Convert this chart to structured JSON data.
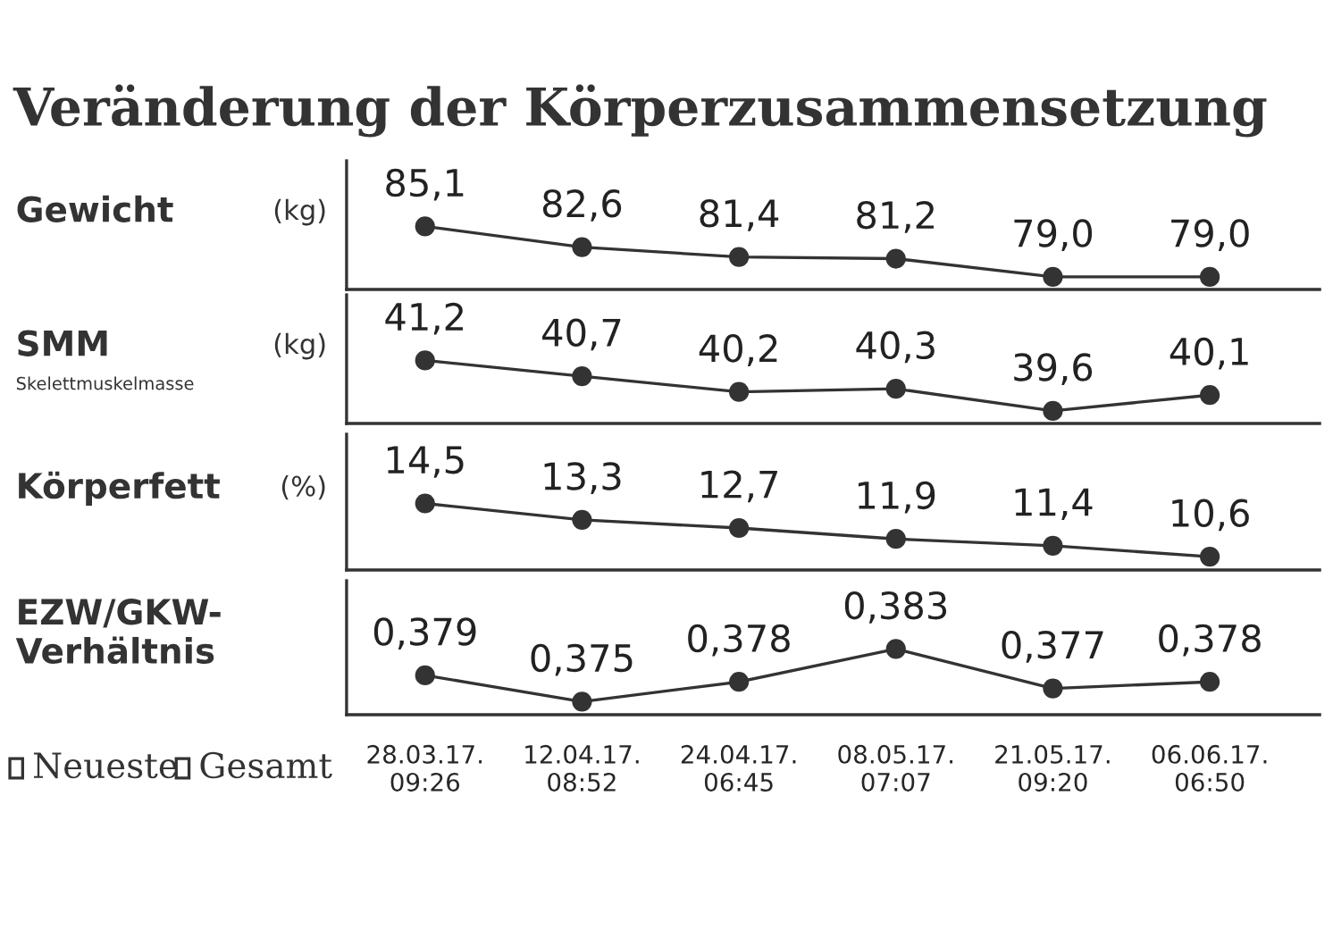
{
  "chart_data": [
    {
      "type": "line",
      "title": "Veränderung der Körperzusammensetzung",
      "ylabel": "Gewicht",
      "annotations": [
        "(kg)"
      ],
      "values": [
        85.1,
        82.6,
        81.4,
        81.2,
        79.0,
        79.0
      ],
      "value_labels": [
        "85,1",
        "82,6",
        "81,4",
        "81,2",
        "79,0",
        "79,0"
      ],
      "color": "#333333",
      "marker": "circle",
      "tick_labels": false
    },
    {
      "type": "line",
      "ylabel": "SMM",
      "annotations": [
        "(kg)",
        "Skelettmuskelmasse"
      ],
      "values": [
        41.2,
        40.7,
        40.2,
        40.3,
        39.6,
        40.1
      ],
      "value_labels": [
        "41,2",
        "40,7",
        "40,2",
        "40,3",
        "39,6",
        "40,1"
      ],
      "color": "#333333",
      "marker": "circle",
      "tick_labels": false
    },
    {
      "type": "line",
      "ylabel": "Körperfett",
      "annotations": [
        "(%)"
      ],
      "values": [
        14.5,
        13.3,
        12.7,
        11.9,
        11.4,
        10.6
      ],
      "value_labels": [
        "14,5",
        "13,3",
        "12,7",
        "11,9",
        "11,4",
        "10,6"
      ],
      "color": "#333333",
      "marker": "circle",
      "tick_labels": false
    },
    {
      "type": "line",
      "ylabel": "EZW/GKW-\nVerhältnis",
      "categories": [
        "28.03.17.\n09:26",
        "12.04.17.\n08:52",
        "24.04.17.\n06:45",
        "08.05.17.\n07:07",
        "21.05.17.\n09:20",
        "06.06.17.\n06:50"
      ],
      "values": [
        0.379,
        0.375,
        0.378,
        0.383,
        0.377,
        0.378
      ],
      "value_labels": [
        "0,379",
        "0,375",
        "0,378",
        "0,383",
        "0,377",
        "0,378"
      ],
      "color": "#333333",
      "marker": "circle",
      "tick_labels": "x"
    },
    {
      "type": "other",
      "annotations": [
        "Neueste",
        "Gesamt"
      ]
    }
  ]
}
